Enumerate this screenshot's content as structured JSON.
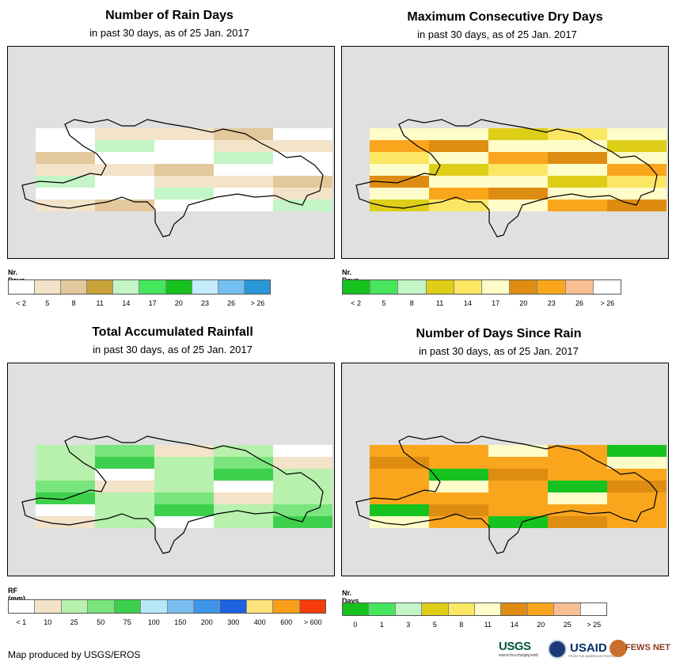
{
  "panels": [
    {
      "id": "rain-days",
      "title": "Number of Rain Days",
      "subtitle": "in past 30 days, as of 25 Jan. 2017",
      "legend_title": "Nr. Days",
      "legend_colors": [
        "#ffffff",
        "#f2e3c9",
        "#e2c89a",
        "#c8a13a",
        "#c3f5c6",
        "#45e65c",
        "#16c21e",
        "#c4ecf9",
        "#73bff0",
        "#2996d6"
      ],
      "legend_labels": [
        "< 2",
        "5",
        "8",
        "11",
        "14",
        "17",
        "20",
        "23",
        "26",
        "> 26"
      ]
    },
    {
      "id": "dry-days",
      "title": "Maximum Consecutive Dry Days",
      "subtitle": "in past 30 days, as of 25 Jan. 2017",
      "legend_title": "Nr. Days",
      "legend_colors": [
        "#16c21e",
        "#45e65c",
        "#c3f5c6",
        "#dece18",
        "#fbe764",
        "#fefcc8",
        "#de8d12",
        "#f9a61d",
        "#f8bf93",
        "#ffffff"
      ],
      "legend_labels": [
        "< 2",
        "5",
        "8",
        "11",
        "14",
        "17",
        "20",
        "23",
        "26",
        "> 26"
      ]
    },
    {
      "id": "rainfall",
      "title": "Total Accumulated Rainfall",
      "subtitle": "in past 30 days, as of 25 Jan. 2017",
      "legend_title": "RF (mm)",
      "legend_colors": [
        "#ffffff",
        "#f2e3c9",
        "#b8f1ad",
        "#7ae57d",
        "#3dd04c",
        "#b5e9f7",
        "#79bdf0",
        "#3f95e8",
        "#1d63e0",
        "#fde47c",
        "#f9a018",
        "#f63c08"
      ],
      "legend_labels": [
        "< 1",
        "10",
        "25",
        "50",
        "75",
        "100",
        "150",
        "200",
        "300",
        "400",
        "600",
        "> 600"
      ]
    },
    {
      "id": "days-since-rain",
      "title": "Number of Days Since Rain",
      "subtitle": "in past 30 days, as of 25 Jan. 2017",
      "legend_title": "Nr. Days",
      "legend_colors": [
        "#16c21e",
        "#45e65c",
        "#c3f5c6",
        "#dece18",
        "#fbe764",
        "#fefcc8",
        "#de8d12",
        "#f9a61d",
        "#f8bf93",
        "#ffffff"
      ],
      "legend_labels": [
        "0",
        "1",
        "3",
        "5",
        "8",
        "11",
        "14",
        "20",
        "25",
        "> 25"
      ]
    }
  ],
  "credit": "Map produced by USGS/EROS",
  "logos": {
    "usgs": "USGS",
    "usgs_tagline": "science for a changing world",
    "usaid": "USAID",
    "usaid_tagline": "FROM THE AMERICAN PEOPLE",
    "fews": "FEWS NET"
  }
}
